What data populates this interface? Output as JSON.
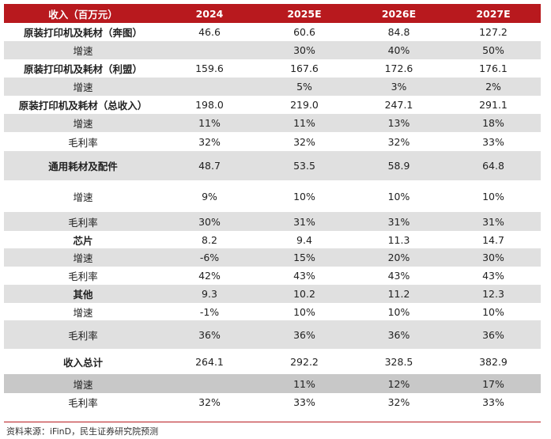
{
  "header": [
    "收入（百万元）",
    "2024",
    "2025E",
    "2026E",
    "2027E"
  ],
  "rows": [
    {
      "cells": [
        "原装打印机及耗材（奔图）",
        "46.6",
        "60.6",
        "84.8",
        "127.2"
      ],
      "bold": true,
      "bg": "white"
    },
    {
      "cells": [
        "增速",
        "",
        "30%",
        "40%",
        "50%"
      ],
      "bold": false,
      "bg": "grey"
    },
    {
      "cells": [
        "原装打印机及耗材（利盟）",
        "159.6",
        "167.6",
        "172.6",
        "176.1"
      ],
      "bold": true,
      "bg": "white"
    },
    {
      "cells": [
        "增速",
        "",
        "5%",
        "3%",
        "2%"
      ],
      "bold": false,
      "bg": "grey"
    },
    {
      "cells": [
        "原装打印机及耗材（总收入）",
        "198.0",
        "219.0",
        "247.1",
        "291.1"
      ],
      "bold": true,
      "bg": "white"
    },
    {
      "cells": [
        "增速",
        "11%",
        "11%",
        "13%",
        "18%"
      ],
      "bold": false,
      "bg": "grey"
    },
    {
      "cells": [
        "毛利率",
        "32%",
        "32%",
        "32%",
        "33%"
      ],
      "bold": false,
      "bg": "white"
    },
    {
      "cells": [
        "通用耗材及配件",
        "48.7",
        "53.5",
        "58.9",
        "64.8"
      ],
      "bold": true,
      "bg": "grey"
    },
    {
      "cells": [
        "增速",
        "9%",
        "10%",
        "10%",
        "10%"
      ],
      "bold": false,
      "bg": "white"
    },
    {
      "cells": [
        "毛利率",
        "30%",
        "31%",
        "31%",
        "31%"
      ],
      "bold": false,
      "bg": "grey"
    },
    {
      "cells": [
        "芯片",
        "8.2",
        "9.4",
        "11.3",
        "14.7"
      ],
      "bold": true,
      "bg": "white"
    },
    {
      "cells": [
        "增速",
        "-6%",
        "15%",
        "20%",
        "30%"
      ],
      "bold": false,
      "bg": "grey"
    },
    {
      "cells": [
        "毛利率",
        "42%",
        "43%",
        "43%",
        "43%"
      ],
      "bold": false,
      "bg": "white"
    },
    {
      "cells": [
        "其他",
        "9.3",
        "10.2",
        "11.2",
        "12.3"
      ],
      "bold": true,
      "bg": "grey"
    },
    {
      "cells": [
        "增速",
        "-1%",
        "10%",
        "10%",
        "10%"
      ],
      "bold": false,
      "bg": "white"
    },
    {
      "cells": [
        "毛利率",
        "36%",
        "36%",
        "36%",
        "36%"
      ],
      "bold": false,
      "bg": "grey"
    },
    {
      "cells": [
        "收入总计",
        "264.1",
        "292.2",
        "328.5",
        "382.9"
      ],
      "bold": true,
      "bg": "white"
    },
    {
      "cells": [
        "增速",
        "",
        "11%",
        "12%",
        "17%"
      ],
      "bold": false,
      "bg": "darkgrey"
    },
    {
      "cells": [
        "毛利率",
        "32%",
        "33%",
        "32%",
        "33%"
      ],
      "bold": false,
      "bg": "white"
    }
  ],
  "source": "资料来源：iFinD，民生证券研究院预测",
  "colors": {
    "header_bg": "#b8191e",
    "header_text": "#ffffff",
    "band_grey": "#e0e0e0",
    "band_dark": "#c8c8c8"
  }
}
